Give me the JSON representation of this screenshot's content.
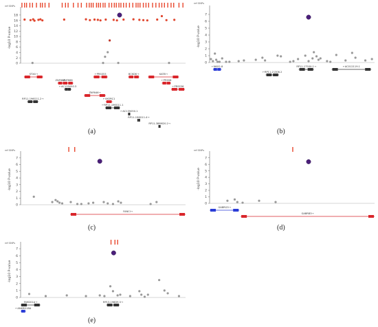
{
  "chart_data": [
    {
      "id": "a",
      "type": "scatter",
      "caption": "(a)",
      "ylabel": "-log10 P-value",
      "snp_track_label": "ref SNPs",
      "yticks": [
        0,
        2,
        4,
        6,
        8,
        10,
        12,
        14,
        16,
        18
      ],
      "ylim": [
        0,
        19
      ],
      "xlim": [
        0,
        250
      ],
      "lead": {
        "x": 150,
        "y": 18
      },
      "points": [
        {
          "x": 6,
          "y": 16.3,
          "c": "#e0452d"
        },
        {
          "x": 15,
          "y": 16.1,
          "c": "#e0452d"
        },
        {
          "x": 19,
          "y": 16.4,
          "c": "#e0452d"
        },
        {
          "x": 21,
          "y": 15.9,
          "c": "#e0452d"
        },
        {
          "x": 27,
          "y": 16.2,
          "c": "#e0452d"
        },
        {
          "x": 30,
          "y": 16.4,
          "c": "#e0452d"
        },
        {
          "x": 33,
          "y": 16.0,
          "c": "#e0452d"
        },
        {
          "x": 66,
          "y": 16.3,
          "c": "#e0452d"
        },
        {
          "x": 99,
          "y": 16.4,
          "c": "#e0452d"
        },
        {
          "x": 105,
          "y": 16.1,
          "c": "#e0452d"
        },
        {
          "x": 112,
          "y": 16.3,
          "c": "#e0452d"
        },
        {
          "x": 117,
          "y": 16.2,
          "c": "#e0452d"
        },
        {
          "x": 121,
          "y": 16.0,
          "c": "#e0452d"
        },
        {
          "x": 129,
          "y": 16.3,
          "c": "#e0452d"
        },
        {
          "x": 141,
          "y": 16.2,
          "c": "#e0452d"
        },
        {
          "x": 146,
          "y": 16.0,
          "c": "#e0452d"
        },
        {
          "x": 156,
          "y": 16.3,
          "c": "#e0452d"
        },
        {
          "x": 171,
          "y": 16.4,
          "c": "#e0452d"
        },
        {
          "x": 180,
          "y": 16.2,
          "c": "#e0452d"
        },
        {
          "x": 186,
          "y": 16.1,
          "c": "#e0452d"
        },
        {
          "x": 192,
          "y": 16.0,
          "c": "#e0452d"
        },
        {
          "x": 207,
          "y": 16.3,
          "c": "#e0452d"
        },
        {
          "x": 214,
          "y": 17.6,
          "c": "#e0452d"
        },
        {
          "x": 221,
          "y": 16.1,
          "c": "#e0452d"
        },
        {
          "x": 233,
          "y": 16.2,
          "c": "#e0452d"
        },
        {
          "x": 135,
          "y": 8.5,
          "c": "#c0392b"
        },
        {
          "x": 132,
          "y": 4.1,
          "c": "#999999"
        },
        {
          "x": 128,
          "y": 2.4,
          "c": "#999999"
        },
        {
          "x": 18,
          "y": 0.1,
          "c": "#999999"
        },
        {
          "x": 125,
          "y": 0.1,
          "c": "#999999"
        },
        {
          "x": 148,
          "y": 0.1,
          "c": "#999999"
        },
        {
          "x": 225,
          "y": 0.1,
          "c": "#999999"
        }
      ],
      "snp_ticks": [
        2,
        6,
        9,
        14,
        18,
        24,
        30,
        33,
        37,
        43,
        63,
        68,
        72,
        80,
        87,
        92,
        100,
        104,
        107,
        110,
        115,
        118,
        121,
        125,
        128,
        134,
        138,
        142,
        145,
        149,
        152,
        156,
        160,
        165,
        170,
        175,
        178,
        181,
        186,
        190,
        194,
        200,
        205,
        210,
        214,
        218,
        223,
        228,
        232,
        240,
        246
      ],
      "genes": [
        {
          "label": "STX4",
          "dir": "right",
          "start": 5,
          "end": 34,
          "row": 0,
          "color": "#d9262b"
        },
        {
          "label": "ZNF668",
          "dir": "",
          "start": 56,
          "end": 64,
          "row": 1,
          "color": "#d9262b"
        },
        {
          "label": "ZNF688",
          "dir": "",
          "start": 63,
          "end": 80,
          "row": 1,
          "color": "#d9262b"
        },
        {
          "label": "AC135050.3",
          "dir": "left",
          "start": 66,
          "end": 77,
          "row": 2,
          "color": "#333333"
        },
        {
          "label": "PRSS53",
          "dir": "left",
          "start": 110,
          "end": 132,
          "row": 0,
          "color": "#d9262b"
        },
        {
          "label": "ZNF646",
          "dir": "right",
          "start": 96,
          "end": 129,
          "row": 3,
          "color": "#d9262b"
        },
        {
          "label": "VKORC1",
          "dir": "left",
          "start": 129,
          "end": 139,
          "row": 4,
          "color": "#d9262b"
        },
        {
          "label": "RP11-196G11.1",
          "dir": "left",
          "start": 128,
          "end": 151,
          "row": 5,
          "color": "#333333"
        },
        {
          "label": "BCKDK",
          "dir": "right",
          "start": 163,
          "end": 180,
          "row": 0,
          "color": "#d9262b"
        },
        {
          "label": "KAT8",
          "dir": "right",
          "start": 193,
          "end": 240,
          "row": 0,
          "color": "#d9262b"
        },
        {
          "label": "PRSS8",
          "dir": "left",
          "start": 214,
          "end": 228,
          "row": 1,
          "color": "#d9262b"
        },
        {
          "label": "PRSS36",
          "dir": "left",
          "start": 228,
          "end": 249,
          "row": 2,
          "color": "#d9262b"
        },
        {
          "label": "RP11-196G11.2",
          "dir": "right",
          "start": 10,
          "end": 27,
          "row": 4,
          "color": "#333333"
        },
        {
          "label": "AC135050.1",
          "dir": "left",
          "start": 163,
          "end": 166,
          "row": 6,
          "color": "#333333"
        },
        {
          "label": "RP11-196G11.4",
          "dir": "right",
          "start": 178,
          "end": 180,
          "row": 7,
          "color": "#333333"
        },
        {
          "label": "RP11-388M20.2",
          "dir": "right",
          "start": 209,
          "end": 212,
          "row": 8,
          "color": "#333333"
        }
      ]
    },
    {
      "id": "b",
      "type": "scatter",
      "caption": "(b)",
      "ylabel": "-log10 P-value",
      "snp_track_label": "ref SNPs",
      "yticks": [
        0,
        1,
        2,
        3,
        4,
        5,
        6,
        7
      ],
      "ylim": [
        0,
        7.5
      ],
      "xlim": [
        0,
        250
      ],
      "lead": {
        "x": 150,
        "y": 6.6
      },
      "points": [
        {
          "x": 2,
          "y": 0.5,
          "c": "#999999"
        },
        {
          "x": 5,
          "y": 0.2,
          "c": "#999999"
        },
        {
          "x": 8,
          "y": 1.3,
          "c": "#999999"
        },
        {
          "x": 10,
          "y": 0.4,
          "c": "#999999"
        },
        {
          "x": 12,
          "y": 0.1,
          "c": "#999999"
        },
        {
          "x": 15,
          "y": 0.1,
          "c": "#999999"
        },
        {
          "x": 19,
          "y": 0.6,
          "c": "#999999"
        },
        {
          "x": 25,
          "y": 0.1,
          "c": "#999999"
        },
        {
          "x": 30,
          "y": 0.1,
          "c": "#999999"
        },
        {
          "x": 44,
          "y": 0.2,
          "c": "#999999"
        },
        {
          "x": 52,
          "y": 0.3,
          "c": "#999999"
        },
        {
          "x": 70,
          "y": 0.4,
          "c": "#999999"
        },
        {
          "x": 80,
          "y": 0.7,
          "c": "#999999"
        },
        {
          "x": 84,
          "y": 0.3,
          "c": "#999999"
        },
        {
          "x": 103,
          "y": 1.0,
          "c": "#999999"
        },
        {
          "x": 108,
          "y": 0.9,
          "c": "#999999"
        },
        {
          "x": 122,
          "y": 0.1,
          "c": "#999999"
        },
        {
          "x": 127,
          "y": 0.2,
          "c": "#999999"
        },
        {
          "x": 134,
          "y": 0.5,
          "c": "#999999"
        },
        {
          "x": 145,
          "y": 1.0,
          "c": "#999999"
        },
        {
          "x": 150,
          "y": 0.2,
          "c": "#999999"
        },
        {
          "x": 156,
          "y": 0.6,
          "c": "#999999"
        },
        {
          "x": 158,
          "y": 1.5,
          "c": "#999999"
        },
        {
          "x": 162,
          "y": 0.9,
          "c": "#999999"
        },
        {
          "x": 165,
          "y": 0.4,
          "c": "#999999"
        },
        {
          "x": 168,
          "y": 0.6,
          "c": "#999999"
        },
        {
          "x": 178,
          "y": 0.2,
          "c": "#999999"
        },
        {
          "x": 183,
          "y": 0.1,
          "c": "#999999"
        },
        {
          "x": 192,
          "y": 1.1,
          "c": "#999999"
        },
        {
          "x": 206,
          "y": 0.3,
          "c": "#999999"
        },
        {
          "x": 216,
          "y": 1.4,
          "c": "#999999"
        },
        {
          "x": 221,
          "y": 0.7,
          "c": "#999999"
        },
        {
          "x": 236,
          "y": 0.3,
          "c": "#999999"
        },
        {
          "x": 246,
          "y": 0.5,
          "c": "#999999"
        }
      ],
      "snp_ticks": [],
      "genes": [
        {
          "label": "NKX2-8",
          "dir": "left",
          "start": 5,
          "end": 18,
          "row": 0,
          "color": "#2a3cd6"
        },
        {
          "label": "RP11-21306.2",
          "dir": "left",
          "start": 85,
          "end": 105,
          "row": 1,
          "color": "#333333"
        },
        {
          "label": "RP11-1750X.1",
          "dir": "right",
          "start": 135,
          "end": 158,
          "row": 0,
          "color": "#333333"
        },
        {
          "label": "AC012119.1",
          "dir": "left",
          "start": 185,
          "end": 245,
          "row": 0,
          "color": "#333333"
        }
      ]
    },
    {
      "id": "c",
      "type": "scatter",
      "caption": "(c)",
      "ylabel": "-log10 P-value",
      "snp_track_label": "ref SNPs",
      "yticks": [
        0,
        1,
        2,
        3,
        4,
        5,
        6,
        7
      ],
      "ylim": [
        0,
        7.5
      ],
      "xlim": [
        0,
        250
      ],
      "lead": {
        "x": 120,
        "y": 6.5
      },
      "points": [
        {
          "x": 20,
          "y": 1.2,
          "c": "#999999"
        },
        {
          "x": 48,
          "y": 0.4,
          "c": "#999999"
        },
        {
          "x": 53,
          "y": 0.7,
          "c": "#999999"
        },
        {
          "x": 56,
          "y": 0.5,
          "c": "#999999"
        },
        {
          "x": 59,
          "y": 0.3,
          "c": "#999999"
        },
        {
          "x": 63,
          "y": 0.2,
          "c": "#999999"
        },
        {
          "x": 76,
          "y": 0.4,
          "c": "#999999"
        },
        {
          "x": 86,
          "y": 0.1,
          "c": "#999999"
        },
        {
          "x": 92,
          "y": 0.1,
          "c": "#999999"
        },
        {
          "x": 103,
          "y": 0.2,
          "c": "#999999"
        },
        {
          "x": 110,
          "y": 0.3,
          "c": "#999999"
        },
        {
          "x": 126,
          "y": 0.4,
          "c": "#999999"
        },
        {
          "x": 132,
          "y": 0.2,
          "c": "#999999"
        },
        {
          "x": 140,
          "y": 0.1,
          "c": "#999999"
        },
        {
          "x": 148,
          "y": 0.5,
          "c": "#999999"
        },
        {
          "x": 152,
          "y": 0.3,
          "c": "#999999"
        },
        {
          "x": 197,
          "y": 0.1,
          "c": "#999999"
        },
        {
          "x": 206,
          "y": 0.4,
          "c": "#999999"
        }
      ],
      "snp_ticks": [
        73,
        82
      ],
      "genes": [
        {
          "label": "FANCI",
          "dir": "right",
          "start": 75,
          "end": 250,
          "row": 0,
          "color": "#d9262b"
        }
      ]
    },
    {
      "id": "d",
      "type": "scatter",
      "caption": "(d)",
      "ylabel": "-log10 P-value",
      "snp_track_label": "ref SNPs",
      "yticks": [
        0,
        1,
        2,
        3,
        4,
        5,
        6,
        7
      ],
      "ylim": [
        0,
        7.5
      ],
      "xlim": [
        0,
        250
      ],
      "lead": {
        "x": 150,
        "y": 6.4
      },
      "points": [
        {
          "x": 27,
          "y": 0.4,
          "c": "#999999"
        },
        {
          "x": 38,
          "y": 0.6,
          "c": "#999999"
        },
        {
          "x": 42,
          "y": 0.2,
          "c": "#999999"
        },
        {
          "x": 50,
          "y": 0.1,
          "c": "#999999"
        },
        {
          "x": 75,
          "y": 0.4,
          "c": "#999999"
        },
        {
          "x": 100,
          "y": 0.2,
          "c": "#999999"
        }
      ],
      "snp_ticks": [
        126
      ],
      "genes": [
        {
          "label": "GABRG3",
          "dir": "right",
          "start": 0,
          "end": 45,
          "row": 0,
          "color": "#2a3cd6"
        },
        {
          "label": "GABRB3",
          "dir": "right",
          "start": 47,
          "end": 250,
          "row": 1,
          "color": "#d9262b"
        }
      ]
    },
    {
      "id": "e",
      "type": "scatter",
      "caption": "(e)",
      "ylabel": "-log10 P-value",
      "snp_track_label": "ref SNPs",
      "yticks": [
        0,
        1,
        2,
        3,
        4,
        5,
        6,
        7
      ],
      "ylim": [
        0,
        7.5
      ],
      "xlim": [
        0,
        250
      ],
      "lead": {
        "x": 141,
        "y": 6.4
      },
      "points": [
        {
          "x": 13,
          "y": 0.5,
          "c": "#999999"
        },
        {
          "x": 38,
          "y": 0.2,
          "c": "#999999"
        },
        {
          "x": 70,
          "y": 0.3,
          "c": "#999999"
        },
        {
          "x": 99,
          "y": 0.2,
          "c": "#999999"
        },
        {
          "x": 120,
          "y": 0.3,
          "c": "#999999"
        },
        {
          "x": 127,
          "y": 0.2,
          "c": "#999999"
        },
        {
          "x": 136,
          "y": 1.6,
          "c": "#999999"
        },
        {
          "x": 140,
          "y": 0.9,
          "c": "#999999"
        },
        {
          "x": 147,
          "y": 0.3,
          "c": "#999999"
        },
        {
          "x": 151,
          "y": 0.4,
          "c": "#999999"
        },
        {
          "x": 166,
          "y": 0.2,
          "c": "#999999"
        },
        {
          "x": 180,
          "y": 0.9,
          "c": "#999999"
        },
        {
          "x": 183,
          "y": 0.4,
          "c": "#999999"
        },
        {
          "x": 188,
          "y": 0.1,
          "c": "#999999"
        },
        {
          "x": 193,
          "y": 0.4,
          "c": "#999999"
        },
        {
          "x": 210,
          "y": 2.5,
          "c": "#999999"
        },
        {
          "x": 218,
          "y": 1.0,
          "c": "#999999"
        },
        {
          "x": 223,
          "y": 0.6,
          "c": "#999999"
        },
        {
          "x": 240,
          "y": 0.2,
          "c": "#999999"
        }
      ],
      "snp_ticks": [
        137,
        143,
        147
      ],
      "genes": [
        {
          "label": "FAM201A",
          "dir": "right",
          "start": 0,
          "end": 30,
          "row": 0,
          "color": "#333333"
        },
        {
          "label": "ANKRD18A",
          "dir": "left",
          "start": 0,
          "end": 8,
          "row": 1,
          "color": "#2a3cd6"
        },
        {
          "label": "RP13-198D9.3",
          "dir": "right",
          "start": 130,
          "end": 150,
          "row": 0,
          "color": "#333333"
        }
      ]
    }
  ]
}
